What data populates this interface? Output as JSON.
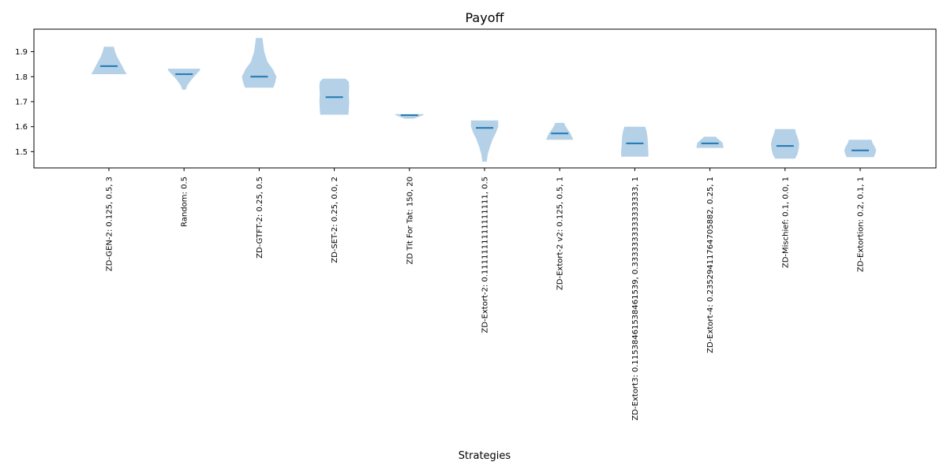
{
  "chart_data": {
    "type": "violin",
    "title": "Payoff",
    "xlabel": "Strategies",
    "ylabel": "",
    "ylim": [
      1.435,
      1.99
    ],
    "yticks": [
      1.5,
      1.6,
      1.7,
      1.8,
      1.9
    ],
    "ytick_labels": [
      "1.5",
      "1.6",
      "1.7",
      "1.8",
      "1.9"
    ],
    "grid": false,
    "colors": {
      "fill": "#a8c9e3",
      "median": "#1f77b4",
      "axis": "#000000"
    },
    "categories": [
      "ZD-GEN-2: 0.125, 0.5, 3",
      "Random: 0.5",
      "ZD-GTFT-2: 0.25, 0.5",
      "ZD-SET-2: 0.25, 0.0, 2",
      "ZD Tit For Tat: 150, 20",
      "ZD-Extort-2: 0.1111111111111111, 0.5",
      "ZD-Extort-2 v2: 0.125, 0.5, 1",
      "ZD-Extort3: 0.11538461538461539, 0.3333333333333333, 1",
      "ZD-Extort-4: 0.23529411764705882, 0.25, 1",
      "ZD-Mischief: 0.1, 0.0, 1",
      "ZD-Extortion: 0.2, 0.1, 1"
    ],
    "violins": [
      {
        "min": 1.81,
        "max": 1.92,
        "median": 1.842,
        "density": [
          [
            1.81,
            0.98
          ],
          [
            1.825,
            0.85
          ],
          [
            1.84,
            0.75
          ],
          [
            1.86,
            0.6
          ],
          [
            1.88,
            0.45
          ],
          [
            1.9,
            0.34
          ],
          [
            1.92,
            0.27
          ]
        ]
      },
      {
        "min": 1.748,
        "max": 1.832,
        "median": 1.81,
        "density": [
          [
            1.748,
            0.1
          ],
          [
            1.765,
            0.18
          ],
          [
            1.785,
            0.38
          ],
          [
            1.8,
            0.55
          ],
          [
            1.815,
            0.75
          ],
          [
            1.825,
            0.88
          ],
          [
            1.832,
            0.88
          ]
        ]
      },
      {
        "min": 1.756,
        "max": 1.955,
        "median": 1.8,
        "density": [
          [
            1.756,
            0.78
          ],
          [
            1.775,
            0.88
          ],
          [
            1.8,
            0.95
          ],
          [
            1.83,
            0.75
          ],
          [
            1.86,
            0.45
          ],
          [
            1.9,
            0.28
          ],
          [
            1.93,
            0.22
          ],
          [
            1.955,
            0.18
          ]
        ]
      },
      {
        "min": 1.648,
        "max": 1.792,
        "median": 1.718,
        "density": [
          [
            1.648,
            0.78
          ],
          [
            1.67,
            0.8
          ],
          [
            1.7,
            0.82
          ],
          [
            1.73,
            0.8
          ],
          [
            1.76,
            0.82
          ],
          [
            1.78,
            0.8
          ],
          [
            1.792,
            0.62
          ]
        ]
      },
      {
        "min": 1.632,
        "max": 1.65,
        "median": 1.646,
        "density": [
          [
            1.632,
            0.25
          ],
          [
            1.64,
            0.55
          ],
          [
            1.646,
            0.75
          ],
          [
            1.65,
            0.8
          ]
        ]
      },
      {
        "min": 1.46,
        "max": 1.625,
        "median": 1.595,
        "density": [
          [
            1.46,
            0.12
          ],
          [
            1.49,
            0.18
          ],
          [
            1.52,
            0.3
          ],
          [
            1.55,
            0.45
          ],
          [
            1.575,
            0.62
          ],
          [
            1.6,
            0.75
          ],
          [
            1.625,
            0.75
          ]
        ]
      },
      {
        "min": 1.548,
        "max": 1.615,
        "median": 1.573,
        "density": [
          [
            1.548,
            0.75
          ],
          [
            1.56,
            0.68
          ],
          [
            1.575,
            0.58
          ],
          [
            1.59,
            0.42
          ],
          [
            1.605,
            0.3
          ],
          [
            1.615,
            0.25
          ]
        ]
      },
      {
        "min": 1.48,
        "max": 1.6,
        "median": 1.533,
        "density": [
          [
            1.48,
            0.75
          ],
          [
            1.5,
            0.75
          ],
          [
            1.53,
            0.72
          ],
          [
            1.56,
            0.7
          ],
          [
            1.58,
            0.65
          ],
          [
            1.6,
            0.58
          ]
        ]
      },
      {
        "min": 1.515,
        "max": 1.56,
        "median": 1.533,
        "density": [
          [
            1.515,
            0.75
          ],
          [
            1.525,
            0.72
          ],
          [
            1.535,
            0.7
          ],
          [
            1.545,
            0.55
          ],
          [
            1.555,
            0.38
          ],
          [
            1.56,
            0.33
          ]
        ]
      },
      {
        "min": 1.472,
        "max": 1.59,
        "median": 1.523,
        "density": [
          [
            1.472,
            0.55
          ],
          [
            1.49,
            0.68
          ],
          [
            1.51,
            0.75
          ],
          [
            1.53,
            0.78
          ],
          [
            1.55,
            0.72
          ],
          [
            1.575,
            0.6
          ],
          [
            1.59,
            0.55
          ]
        ]
      },
      {
        "min": 1.478,
        "max": 1.548,
        "median": 1.505,
        "density": [
          [
            1.478,
            0.75
          ],
          [
            1.49,
            0.82
          ],
          [
            1.505,
            0.88
          ],
          [
            1.52,
            0.8
          ],
          [
            1.535,
            0.68
          ],
          [
            1.548,
            0.62
          ]
        ]
      }
    ]
  }
}
